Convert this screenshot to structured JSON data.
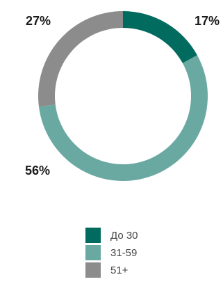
{
  "chart_data": {
    "type": "pie",
    "categories": [
      "До 30",
      "31-59",
      "51+"
    ],
    "values": [
      17,
      56,
      27
    ],
    "data_labels": [
      "17%",
      "56%",
      "27%"
    ],
    "colors": [
      "#006b5e",
      "#6aa9a2",
      "#8c8c8c"
    ],
    "donut": true,
    "legend_position": "bottom"
  }
}
